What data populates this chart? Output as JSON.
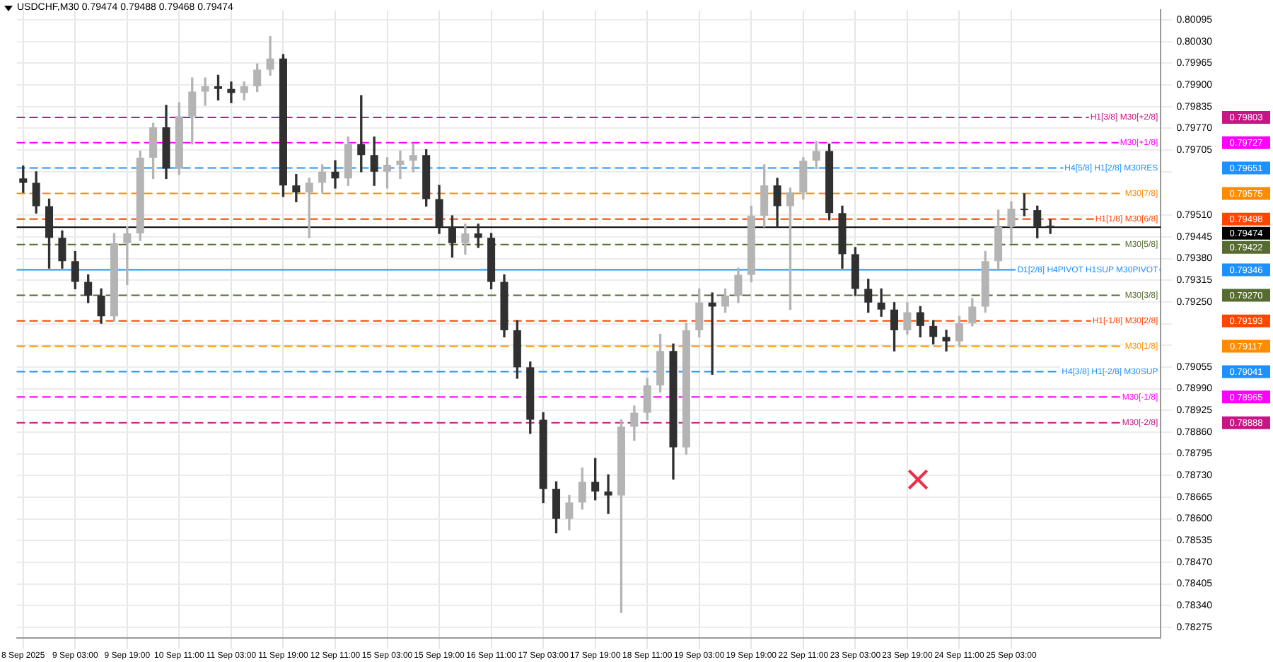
{
  "chart_data": {
    "type": "candlestick",
    "title": "USDCHF,M30 0.79474 0.79488 0.79468 0.79474",
    "categories": [
      "8 Sep 2025",
      null,
      null,
      null,
      "9 Sep 03:00",
      null,
      null,
      null,
      "9 Sep 19:00",
      null,
      null,
      null,
      "10 Sep 11:00",
      null,
      null,
      null,
      "11 Sep 03:00",
      null,
      null,
      null,
      "11 Sep 19:00",
      null,
      null,
      null,
      "12 Sep 11:00",
      null,
      null,
      null,
      "15 Sep 03:00",
      null,
      null,
      null,
      "15 Sep 19:00",
      null,
      null,
      null,
      "16 Sep 11:00",
      null,
      null,
      null,
      "17 Sep 03:00",
      null,
      null,
      null,
      "17 Sep 19:00",
      null,
      null,
      null,
      "18 Sep 11:00",
      null,
      null,
      null,
      "19 Sep 03:00",
      null,
      null,
      null,
      "19 Sep 19:00",
      null,
      null,
      null,
      "22 Sep 11:00",
      null,
      null,
      null,
      "23 Sep 03:00",
      null,
      null,
      null,
      "23 Sep 19:00",
      null,
      null,
      null,
      "24 Sep 11:00",
      null,
      null,
      null,
      "25 Sep 03:00",
      null,
      null,
      null,
      null,
      null,
      null,
      null,
      null,
      null,
      null,
      null
    ],
    "ohlc": [
      [
        0.7962,
        0.79657,
        0.79578,
        0.79607
      ],
      [
        0.79607,
        0.7964,
        0.79516,
        0.79537
      ],
      [
        0.79537,
        0.79558,
        0.79351,
        0.79442
      ],
      [
        0.79442,
        0.79463,
        0.79351,
        0.79372
      ],
      [
        0.79372,
        0.79401,
        0.79289,
        0.7931
      ],
      [
        0.7931,
        0.79331,
        0.79248,
        0.79269
      ],
      [
        0.79269,
        0.79289,
        0.79186,
        0.79207
      ],
      [
        0.79207,
        0.79455,
        0.79194,
        0.79426
      ],
      [
        0.79426,
        0.79475,
        0.79302,
        0.79455
      ],
      [
        0.79455,
        0.79702,
        0.79434,
        0.79682
      ],
      [
        0.79682,
        0.79785,
        0.7962,
        0.79773
      ],
      [
        0.79773,
        0.79839,
        0.7962,
        0.79649
      ],
      [
        0.79649,
        0.79847,
        0.79632,
        0.79806
      ],
      [
        0.79806,
        0.79921,
        0.79723,
        0.7988
      ],
      [
        0.7988,
        0.79921,
        0.79839,
        0.79896
      ],
      [
        0.79896,
        0.79929,
        0.79855,
        0.79888
      ],
      [
        0.79888,
        0.79909,
        0.79847,
        0.79876
      ],
      [
        0.79876,
        0.79909,
        0.79855,
        0.79896
      ],
      [
        0.79896,
        0.79963,
        0.7988,
        0.79946
      ],
      [
        0.79946,
        0.80045,
        0.79929,
        0.79979
      ],
      [
        0.79979,
        0.79991,
        0.79566,
        0.79599
      ],
      [
        0.79599,
        0.79632,
        0.7955,
        0.79578
      ],
      [
        0.79578,
        0.7962,
        0.79442,
        0.79607
      ],
      [
        0.79607,
        0.79661,
        0.79578,
        0.7964
      ],
      [
        0.7964,
        0.79673,
        0.79591,
        0.7962
      ],
      [
        0.7962,
        0.79744,
        0.79599,
        0.79723
      ],
      [
        0.79723,
        0.79868,
        0.7964,
        0.7969
      ],
      [
        0.7969,
        0.79744,
        0.79599,
        0.7964
      ],
      [
        0.7964,
        0.79682,
        0.79591,
        0.79661
      ],
      [
        0.79661,
        0.79702,
        0.7962,
        0.79673
      ],
      [
        0.79673,
        0.79723,
        0.7964,
        0.7969
      ],
      [
        0.7969,
        0.79706,
        0.79537,
        0.79558
      ],
      [
        0.79558,
        0.79599,
        0.79455,
        0.79475
      ],
      [
        0.79475,
        0.79508,
        0.79384,
        0.79426
      ],
      [
        0.79426,
        0.79483,
        0.79393,
        0.79455
      ],
      [
        0.79455,
        0.79483,
        0.79413,
        0.79442
      ],
      [
        0.79442,
        0.79455,
        0.79289,
        0.7931
      ],
      [
        0.7931,
        0.79331,
        0.79145,
        0.79165
      ],
      [
        0.79165,
        0.79194,
        0.79021,
        0.79054
      ],
      [
        0.79054,
        0.7907,
        0.78856,
        0.78897
      ],
      [
        0.78897,
        0.78918,
        0.78649,
        0.7869
      ],
      [
        0.7869,
        0.78711,
        0.78558,
        0.786
      ],
      [
        0.786,
        0.7867,
        0.78567,
        0.78649
      ],
      [
        0.78649,
        0.78752,
        0.78629,
        0.78711
      ],
      [
        0.78711,
        0.78781,
        0.78657,
        0.78682
      ],
      [
        0.78682,
        0.78732,
        0.78616,
        0.7867
      ],
      [
        0.7867,
        0.78897,
        0.78319,
        0.78876
      ],
      [
        0.78876,
        0.78938,
        0.78835,
        0.78918
      ],
      [
        0.78918,
        0.79021,
        0.78897,
        0.79
      ],
      [
        0.79,
        0.79153,
        0.7898,
        0.79103
      ],
      [
        0.79103,
        0.79124,
        0.78719,
        0.78814
      ],
      [
        0.78814,
        0.79186,
        0.78794,
        0.79165
      ],
      [
        0.79165,
        0.79289,
        0.79145,
        0.79248
      ],
      [
        0.79248,
        0.79277,
        0.79033,
        0.79236
      ],
      [
        0.79236,
        0.79289,
        0.79219,
        0.79269
      ],
      [
        0.79269,
        0.79351,
        0.79248,
        0.79331
      ],
      [
        0.79331,
        0.79537,
        0.7931,
        0.79508
      ],
      [
        0.79508,
        0.79661,
        0.79475,
        0.79599
      ],
      [
        0.79599,
        0.7962,
        0.79475,
        0.79537
      ],
      [
        0.79537,
        0.79591,
        0.79227,
        0.79578
      ],
      [
        0.79578,
        0.79682,
        0.79558,
        0.79673
      ],
      [
        0.79673,
        0.79731,
        0.79649,
        0.79702
      ],
      [
        0.79702,
        0.79723,
        0.79496,
        0.79516
      ],
      [
        0.79516,
        0.79537,
        0.79351,
        0.79393
      ],
      [
        0.79393,
        0.79413,
        0.79269,
        0.79289
      ],
      [
        0.79289,
        0.79318,
        0.79219,
        0.79248
      ],
      [
        0.79248,
        0.79289,
        0.79207,
        0.79227
      ],
      [
        0.79227,
        0.79248,
        0.79103,
        0.79165
      ],
      [
        0.79165,
        0.79248,
        0.79153,
        0.79219
      ],
      [
        0.79219,
        0.79236,
        0.79145,
        0.79178
      ],
      [
        0.79178,
        0.79194,
        0.79124,
        0.79145
      ],
      [
        0.79145,
        0.79165,
        0.79103,
        0.79132
      ],
      [
        0.79132,
        0.79207,
        0.7912,
        0.79186
      ],
      [
        0.79186,
        0.7926,
        0.79178,
        0.79236
      ],
      [
        0.79236,
        0.79401,
        0.79219,
        0.79372
      ],
      [
        0.79372,
        0.79525,
        0.79351,
        0.79475
      ],
      [
        0.79475,
        0.7955,
        0.79426,
        0.79529
      ],
      [
        0.79529,
        0.79574,
        0.79508,
        0.79525
      ],
      [
        0.79525,
        0.79537,
        0.79442,
        0.79475
      ],
      [
        0.79475,
        0.79496,
        0.79455,
        0.79474
      ],
      null,
      null,
      null,
      null,
      null,
      null,
      null,
      null
    ],
    "colors": [
      "#303030",
      "#303030",
      "#303030",
      "#303030",
      "#303030",
      "#303030",
      "#303030",
      "#b4b4b4",
      "#b4b4b4",
      "#b4b4b4",
      "#b4b4b4",
      "#303030",
      "#b4b4b4",
      "#b4b4b4",
      "#b4b4b4",
      "#303030",
      "#303030",
      "#b4b4b4",
      "#b4b4b4",
      "#b4b4b4",
      "#303030",
      "#303030",
      "#b4b4b4",
      "#b4b4b4",
      "#303030",
      "#b4b4b4",
      "#303030",
      "#303030",
      "#b4b4b4",
      "#b4b4b4",
      "#b4b4b4",
      "#303030",
      "#303030",
      "#303030",
      "#b4b4b4",
      "#303030",
      "#303030",
      "#303030",
      "#303030",
      "#303030",
      "#303030",
      "#303030",
      "#b4b4b4",
      "#b4b4b4",
      "#303030",
      "#303030",
      "#b4b4b4",
      "#b4b4b4",
      "#b4b4b4",
      "#b4b4b4",
      "#303030",
      "#b4b4b4",
      "#b4b4b4",
      "#303030",
      "#b4b4b4",
      "#b4b4b4",
      "#b4b4b4",
      "#b4b4b4",
      "#303030",
      "#b4b4b4",
      "#b4b4b4",
      "#b4b4b4",
      "#303030",
      "#303030",
      "#303030",
      "#303030",
      "#303030",
      "#303030",
      "#b4b4b4",
      "#303030",
      "#303030",
      "#303030",
      "#b4b4b4",
      "#b4b4b4",
      "#b4b4b4",
      "#b4b4b4",
      "#b4b4b4",
      "#303030",
      "#303030",
      "#303030",
      null,
      null,
      null,
      null,
      null,
      null,
      null,
      null
    ],
    "ylim": [
      0.78244,
      0.80124
    ],
    "yticks": [
      0.80095,
      {
        "value": 0.8003,
        "label": "0.80030"
      },
      0.79965,
      {
        "value": 0.799,
        "label": "0.79900"
      },
      0.79835,
      {
        "value": 0.7977,
        "label": "0.79770"
      },
      0.79705,
      {
        "value": 0.7964,
        "label": null
      },
      {
        "value": 0.7951,
        "label": "0.79510"
      },
      0.79445,
      {
        "value": 0.7938,
        "label": "0.79380"
      },
      0.79315,
      {
        "value": 0.7925,
        "label": "0.79250"
      },
      {
        "value": 0.79185,
        "label": null
      },
      {
        "value": 0.7912,
        "label": null
      },
      0.79055,
      {
        "value": 0.7899,
        "label": "0.78990"
      },
      0.78925,
      {
        "value": 0.7886,
        "label": "0.78860"
      },
      0.78795,
      {
        "value": 0.7873,
        "label": "0.78730"
      },
      0.78665,
      {
        "value": 0.786,
        "label": "0.78600"
      },
      0.78535,
      {
        "value": 0.7847,
        "label": "0.78470"
      },
      0.78405,
      {
        "value": 0.7834,
        "label": "0.78340"
      },
      0.78275
    ],
    "grid": true,
    "ref_lines": [
      {
        "axis": "y",
        "value": 0.79803,
        "label": "H1[3/8] M30[+2/8]",
        "color": "#c71585",
        "line_style": "dashed"
      },
      {
        "axis": "y",
        "value": 0.79727,
        "label": "M30[+1/8]",
        "color": "#ff00ff",
        "line_style": "dashed"
      },
      {
        "axis": "y",
        "value": 0.79651,
        "label": "H4[5/8] H1[2/8] M30RES",
        "color": "#1e90ff",
        "line_style": "dashed"
      },
      {
        "axis": "y",
        "value": 0.79575,
        "label": "M30[7/8]",
        "color": "#ff8c00",
        "line_style": "dashed"
      },
      {
        "axis": "y",
        "value": 0.79498,
        "label": "H1[1/8] M30[6/8]",
        "color": "#ff4500",
        "line_style": "dashed"
      },
      {
        "axis": "y",
        "value": 0.79474,
        "color": "#000000",
        "line_style": "solid"
      },
      {
        "axis": "y",
        "value": 0.79422,
        "label": "M30[5/8]",
        "color": "#556b2f",
        "line_style": "dashed"
      },
      {
        "axis": "y",
        "value": 0.79346,
        "label": "D1[2/8] H4PIVOT H1SUP M30PIVOT",
        "color": "#1e90ff",
        "line_style": "solid"
      },
      {
        "axis": "y",
        "value": 0.7927,
        "label": "M30[3/8]",
        "color": "#556b2f",
        "line_style": "dashed"
      },
      {
        "axis": "y",
        "value": 0.79193,
        "label": "H1[-1/8] M30[2/8]",
        "color": "#ff4500",
        "line_style": "dashed"
      },
      {
        "axis": "y",
        "value": 0.79117,
        "label": "M30[1/8]",
        "color": "#ff8c00",
        "line_style": "dashed"
      },
      {
        "axis": "y",
        "value": 0.79041,
        "label": "H4[3/8] H1[-2/8] M30SUP",
        "color": "#1e90ff",
        "line_style": "dashed"
      },
      {
        "axis": "y",
        "value": 0.78965,
        "label": "M30[-1/8]",
        "color": "#ff00ff",
        "line_style": "dashed"
      },
      {
        "axis": "y",
        "value": 0.78888,
        "label": "M30[-2/8]",
        "color": "#c71585",
        "line_style": "dashed"
      }
    ],
    "annotations": [
      "0.79803",
      "0.79727",
      "0.79651",
      "0.79575",
      "0.79498",
      "0.79474",
      "0.79422",
      "0.79346",
      "0.79270",
      "0.79193",
      "0.79117",
      "0.79041",
      "0.78965",
      "0.78888"
    ]
  }
}
